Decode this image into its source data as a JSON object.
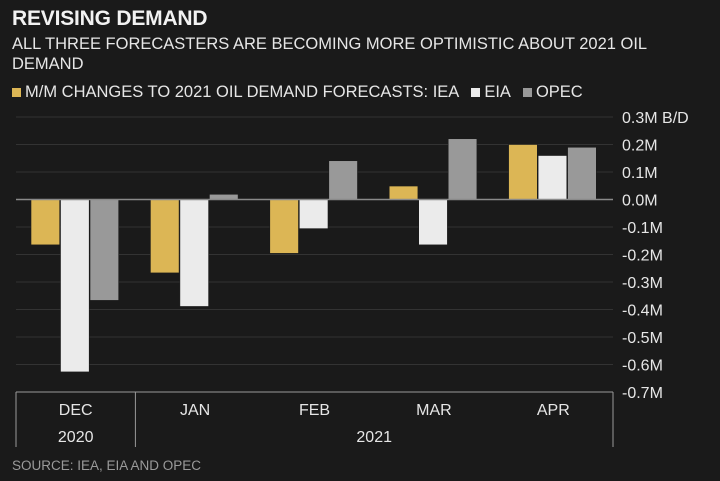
{
  "title": "REVISING DEMAND",
  "subtitle": "ALL THREE FORECASTERS ARE BECOMING MORE OPTIMISTIC ABOUT 2021 OIL DEMAND",
  "source": "SOURCE: IEA, EIA AND OPEC",
  "colors": {
    "IEA": "#dcb655",
    "EIA": "#ebebeb",
    "OPEC": "#999999",
    "background": "#1a1a1a",
    "grid": "#333333"
  },
  "chart_data": {
    "type": "bar",
    "title": "M/M CHANGES TO 2021 OIL DEMAND FORECASTS",
    "legend_prefix": "M/M CHANGES TO 2021 OIL DEMAND FORECASTS:",
    "legend_position": "top-left",
    "categories": [
      "DEC",
      "JAN",
      "FEB",
      "MAR",
      "APR"
    ],
    "category_groups": [
      {
        "label": "2020",
        "categories": [
          "DEC"
        ]
      },
      {
        "label": "2021",
        "categories": [
          "JAN",
          "FEB",
          "MAR",
          "APR"
        ]
      }
    ],
    "series": [
      {
        "name": "IEA",
        "values": [
          -0.165,
          -0.267,
          -0.196,
          0.049,
          0.2
        ]
      },
      {
        "name": "EIA",
        "values": [
          -0.627,
          -0.389,
          -0.106,
          -0.165,
          0.16
        ]
      },
      {
        "name": "OPEC",
        "values": [
          -0.367,
          0.019,
          0.141,
          0.221,
          0.19
        ]
      }
    ],
    "yunit": "M B/D",
    "ylabel": "B/D",
    "ylim": [
      -0.7,
      0.3
    ],
    "yticks": [
      0.3,
      0.2,
      0.1,
      0.0,
      -0.1,
      -0.2,
      -0.3,
      -0.4,
      -0.5,
      -0.6,
      -0.7
    ],
    "ytick_labels": [
      "0.3M B/D",
      "0.2M",
      "0.1M",
      "0.0M",
      "-0.1M",
      "-0.2M",
      "-0.3M",
      "-0.4M",
      "-0.5M",
      "-0.6M",
      "-0.7M"
    ],
    "grid": true,
    "yaxis_side": "right"
  }
}
